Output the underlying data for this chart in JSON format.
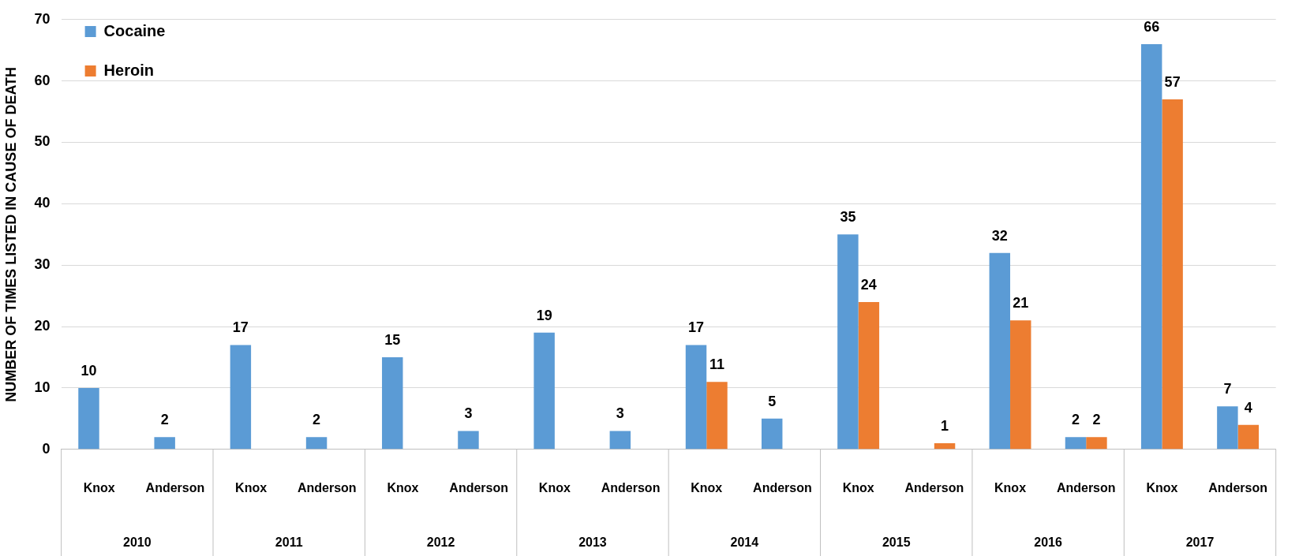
{
  "chart_data": {
    "type": "bar",
    "ylabel": "NUMBER OF TIMES LISTED IN CAUSE OF DEATH",
    "categories": [
      "Knox",
      "Anderson",
      "Knox",
      "Anderson",
      "Knox",
      "Anderson",
      "Knox",
      "Anderson",
      "Knox",
      "Anderson",
      "Knox",
      "Anderson",
      "Knox",
      "Anderson",
      "Knox",
      "Anderson"
    ],
    "series": [
      {
        "name": "Cocaine",
        "color": "#5b9bd5",
        "values": [
          10,
          2,
          17,
          2,
          15,
          3,
          19,
          3,
          17,
          5,
          35,
          0,
          32,
          2,
          66,
          7
        ],
        "value_labels": [
          "10",
          "2",
          "17",
          "2",
          "15",
          "3",
          "19",
          "3",
          "17",
          "5",
          "35",
          null,
          "32",
          "2",
          "66",
          "7"
        ]
      },
      {
        "name": "Heroin",
        "color": "#ed7d31",
        "values": [
          0,
          0,
          0,
          0,
          0,
          0,
          0,
          0,
          11,
          0,
          24,
          1,
          21,
          2,
          57,
          4
        ],
        "value_labels": [
          null,
          null,
          null,
          null,
          null,
          null,
          null,
          null,
          "11",
          null,
          "24",
          "1",
          "21",
          "2",
          "57",
          "4"
        ]
      }
    ],
    "annotations": [
      "2010",
      "2011",
      "2012",
      "2013",
      "2014",
      "2015",
      "2016",
      "2017"
    ],
    "ylim": [
      0,
      70
    ],
    "yticks": [
      0,
      10,
      20,
      30,
      40,
      50,
      60,
      70
    ],
    "grid": "y",
    "legend": "top left"
  }
}
